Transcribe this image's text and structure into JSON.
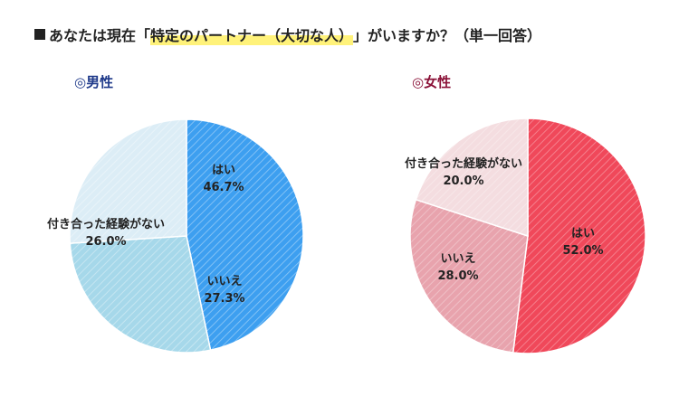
{
  "title": {
    "prefix": "あなたは現在「",
    "highlight": "特定のパートナー（大切な人）",
    "suffix": "」がいますか？（単一回答）"
  },
  "chart_data": [
    {
      "type": "pie",
      "title": "◎男性",
      "title_color": "#1f3a8a",
      "slices": [
        {
          "label": "はい",
          "value": 46.7,
          "display": "46.7%",
          "color": "#3d9ff0"
        },
        {
          "label": "いいえ",
          "value": 27.3,
          "display": "27.3%",
          "color": "#a6d8ea"
        },
        {
          "label": "付き合った経験がない",
          "value": 26.0,
          "display": "26.0%",
          "color": "#dcedf6"
        }
      ]
    },
    {
      "type": "pie",
      "title": "◎女性",
      "title_color": "#8b1238",
      "slices": [
        {
          "label": "はい",
          "value": 52.0,
          "display": "52.0%",
          "color": "#f0485a"
        },
        {
          "label": "いいえ",
          "value": 28.0,
          "display": "28.0%",
          "color": "#e8a3ad"
        },
        {
          "label": "付き合った経験がない",
          "value": 20.0,
          "display": "20.0%",
          "color": "#f4dde0"
        }
      ]
    }
  ]
}
